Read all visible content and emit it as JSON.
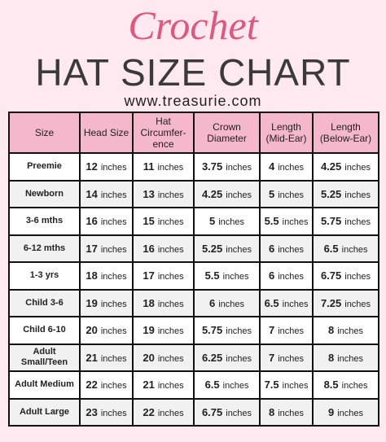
{
  "header": {
    "script_title": "Crochet",
    "title": "HAT SIZE CHART",
    "url": "www.treasurie.com"
  },
  "table": {
    "columns": [
      [
        "Size"
      ],
      [
        "Head Size"
      ],
      [
        "Hat",
        "Circumfer-",
        "ence"
      ],
      [
        "Crown",
        "Diameter"
      ],
      [
        "Length",
        "(Mid-Ear)"
      ],
      [
        "Length",
        "(Below-Ear)"
      ]
    ],
    "unit": "inches",
    "rows": [
      [
        "Preemie",
        "12",
        "11",
        "3.75",
        "4",
        "4.25"
      ],
      [
        "Newborn",
        "14",
        "13",
        "4.25",
        "5",
        "5.25"
      ],
      [
        "3-6 mths",
        "16",
        "15",
        "5",
        "5.5",
        "5.75"
      ],
      [
        "6-12 mths",
        "17",
        "16",
        "5.25",
        "6",
        "6.5"
      ],
      [
        "1-3 yrs",
        "18",
        "17",
        "5.5",
        "6",
        "6.75"
      ],
      [
        "Child 3-6",
        "19",
        "18",
        "6",
        "6.5",
        "7.25"
      ],
      [
        "Child 6-10",
        "20",
        "19",
        "5.75",
        "7",
        "8"
      ],
      [
        "Adult Small/Teen",
        "21",
        "20",
        "6.25",
        "7",
        "8"
      ],
      [
        "Adult Medium",
        "22",
        "21",
        "6.5",
        "7.5",
        "8.5"
      ],
      [
        "Adult Large",
        "23",
        "22",
        "6.75",
        "8",
        "9"
      ]
    ]
  }
}
